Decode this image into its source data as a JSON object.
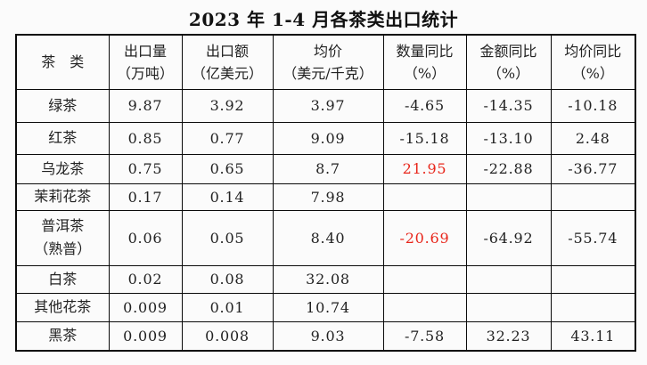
{
  "title": "2023 年 1-4 月各茶类出口统计",
  "colors": {
    "highlight_red": "#e8251a",
    "text": "#222222",
    "border": "#0a0a0a",
    "page_background": "#fbfbfb"
  },
  "chart_data": {
    "type": "table",
    "title": "2023 年 1-4 月各茶类出口统计",
    "columns": [
      "茶　类",
      "出口量（万吨）",
      "出口额（亿美元）",
      "均价（美元/千克）",
      "数量同比（%）",
      "金额同比（%）",
      "均价同比（%）"
    ],
    "rows": [
      [
        "绿茶",
        9.87,
        3.92,
        3.97,
        -4.65,
        -14.35,
        -10.18
      ],
      [
        "红茶",
        0.85,
        0.77,
        9.09,
        -15.18,
        -13.1,
        2.48
      ],
      [
        "乌龙茶",
        0.75,
        0.65,
        8.7,
        21.95,
        -22.88,
        -36.77
      ],
      [
        "茉莉花茶",
        0.17,
        0.14,
        7.98,
        null,
        null,
        null
      ],
      [
        "普洱茶（熟普）",
        0.06,
        0.05,
        8.4,
        -20.69,
        -64.92,
        -55.74
      ],
      [
        "白茶",
        0.02,
        0.08,
        32.08,
        null,
        null,
        null
      ],
      [
        "其他花茶",
        0.009,
        0.01,
        10.74,
        null,
        null,
        null
      ],
      [
        "黑茶",
        0.009,
        0.008,
        9.03,
        -7.58,
        32.23,
        43.11
      ]
    ]
  },
  "table": {
    "columns": [
      {
        "line1": "茶　类",
        "line2": ""
      },
      {
        "line1": "出口量",
        "line2": "（万吨）"
      },
      {
        "line1": "出口额",
        "line2": "（亿美元）"
      },
      {
        "line1": "均价",
        "line2": "（美元/千克）"
      },
      {
        "line1": "数量同比",
        "line2": "（%）"
      },
      {
        "line1": "金额同比",
        "line2": "（%）"
      },
      {
        "line1": "均价同比",
        "line2": "（%）"
      }
    ],
    "rows": [
      {
        "cells": [
          "绿茶",
          "9.87",
          "3.92",
          "3.97",
          "-4.65",
          "-14.35",
          "-10.18"
        ],
        "red": []
      },
      {
        "cells": [
          "红茶",
          "0.85",
          "0.77",
          "9.09",
          "-15.18",
          "-13.10",
          "2.48"
        ],
        "red": []
      },
      {
        "cells": [
          "乌龙茶",
          "0.75",
          "0.65",
          "8.7",
          "21.95",
          "-22.88",
          "-36.77"
        ],
        "red": [
          4
        ]
      },
      {
        "cells": [
          "茉莉花茶",
          "0.17",
          "0.14",
          "7.98",
          "",
          "",
          ""
        ],
        "red": []
      },
      {
        "cells": [
          "普洱茶\n（熟普）",
          "0.06",
          "0.05",
          "8.40",
          "-20.69",
          "-64.92",
          "-55.74"
        ],
        "red": [
          4
        ]
      },
      {
        "cells": [
          "白茶",
          "0.02",
          "0.08",
          "32.08",
          "",
          "",
          ""
        ],
        "red": []
      },
      {
        "cells": [
          "其他花茶",
          "0.009",
          "0.01",
          "10.74",
          "",
          "",
          ""
        ],
        "red": []
      },
      {
        "cells": [
          "黑茶",
          "0.009",
          "0.008",
          "9.03",
          "-7.58",
          "32.23",
          "43.11"
        ],
        "red": []
      }
    ]
  }
}
